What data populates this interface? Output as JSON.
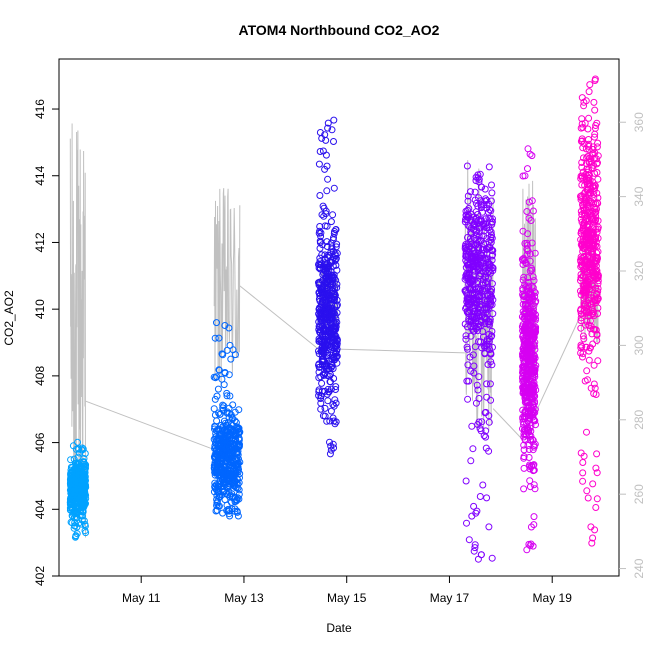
{
  "chart_data": {
    "type": "scatter",
    "title": "ATOM4 Northbound CO2_AO2",
    "xlabel": "Date",
    "ylabel": "CO2_AO2",
    "x_ticks": [
      "May 11",
      "May 13",
      "May 15",
      "May 17",
      "May 19"
    ],
    "x_tick_days": [
      11,
      13,
      15,
      17,
      19
    ],
    "xlim": [
      9.4,
      20.3
    ],
    "ylim": [
      402,
      417.5
    ],
    "y_ticks": [
      402,
      404,
      406,
      408,
      410,
      412,
      414,
      416
    ],
    "y2lim": [
      238,
      377
    ],
    "y2_ticks": [
      240,
      260,
      280,
      300,
      320,
      340,
      360
    ],
    "y2_color": "#c0c0c0",
    "grid": false,
    "legend": "none",
    "marker": "open-circle",
    "series": [
      {
        "color": "#00a2ff",
        "x_range": [
          9.62,
          9.92
        ],
        "y_range": [
          403.1,
          406.1
        ],
        "center": 404.6
      },
      {
        "color": "#0066ff",
        "x_range": [
          12.42,
          12.92
        ],
        "y_range": [
          403.8,
          409.6
        ],
        "center": 405.5
      },
      {
        "color": "#2a10ee",
        "x_range": [
          14.45,
          14.82
        ],
        "y_range": [
          405.6,
          415.7
        ],
        "center": 409.8
      },
      {
        "color": "#8000ff",
        "x_range": [
          17.3,
          17.85
        ],
        "y_range": [
          402.5,
          414.3
        ],
        "center": 411.0
      },
      {
        "color": "#d600f2",
        "x_range": [
          18.42,
          18.68
        ],
        "y_range": [
          402.6,
          415.0
        ],
        "center": 408.5
      },
      {
        "color": "#ff00cc",
        "x_range": [
          19.55,
          19.9
        ],
        "y_range": [
          402.9,
          416.9
        ],
        "center": 412.0
      }
    ],
    "secondary_line": {
      "color": "#c0c0c0",
      "axis": "right",
      "segments": [
        {
          "x_range": [
            9.62,
            9.92
          ],
          "y2_low": 248,
          "y2_high": 362
        },
        {
          "x_range": [
            12.42,
            12.92
          ],
          "y2_low": 286,
          "y2_high": 343
        },
        {
          "x_range": [
            14.45,
            14.82
          ],
          "y2_low": 300,
          "y2_high": 320
        },
        {
          "x_range": [
            17.3,
            17.85
          ],
          "y2_low": 275,
          "y2_high": 350
        },
        {
          "x_range": [
            18.42,
            18.68
          ],
          "y2_low": 280,
          "y2_high": 345
        },
        {
          "x_range": [
            19.55,
            19.9
          ],
          "y2_low": 300,
          "y2_high": 330
        }
      ],
      "connectors": [
        [
          9.92,
          285.0,
          12.42,
          272.0
        ],
        [
          12.92,
          316.0,
          14.45,
          299.0
        ],
        [
          14.82,
          299.0,
          17.3,
          298.0
        ],
        [
          17.85,
          283.0,
          18.4,
          275.0
        ],
        [
          18.68,
          282.0,
          19.55,
          308.0
        ]
      ]
    }
  }
}
